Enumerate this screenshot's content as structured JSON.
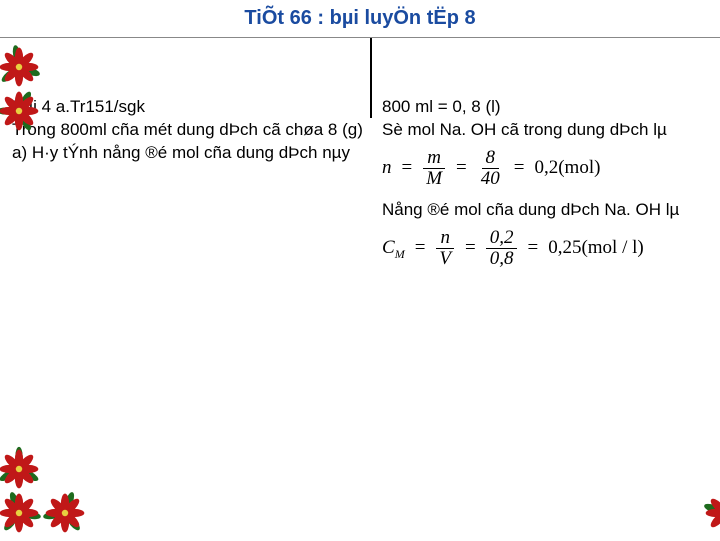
{
  "title": "TiÕt 66 : bµi luyÖn tËp 8",
  "left": {
    "line1": "Bµi 4 a.Tr151/sgk",
    "line2": "Trong 800ml cña mét dung dÞch cã chøa 8 (g)",
    "line3": "a) H·y tÝnh nång ®é mol cña dung dÞch nµy"
  },
  "right": {
    "line1": "800 ml = 0, 8 (l)",
    "line2": "Sè mol Na. OH cã trong dung dÞch lµ",
    "formula1": {
      "lhs": "n",
      "frac1_num": "m",
      "frac1_den": "M",
      "frac2_num": "8",
      "frac2_den": "40",
      "result": "0,2(mol)"
    },
    "line3": "Nång ®é mol cña dung dÞch Na. OH lµ",
    "formula2": {
      "lhs": "C",
      "sub": "M",
      "frac1_num": "n",
      "frac1_den": "V",
      "frac2_num": "0,2",
      "frac2_den": "0,8",
      "result": "0,25(mol / l)"
    }
  },
  "colors": {
    "title": "#1a4ba0",
    "text": "#000000",
    "flower_red": "#c01818",
    "flower_darkred": "#8a0f0f",
    "flower_leaf": "#1e6b1e",
    "flower_center": "#e8d040"
  }
}
